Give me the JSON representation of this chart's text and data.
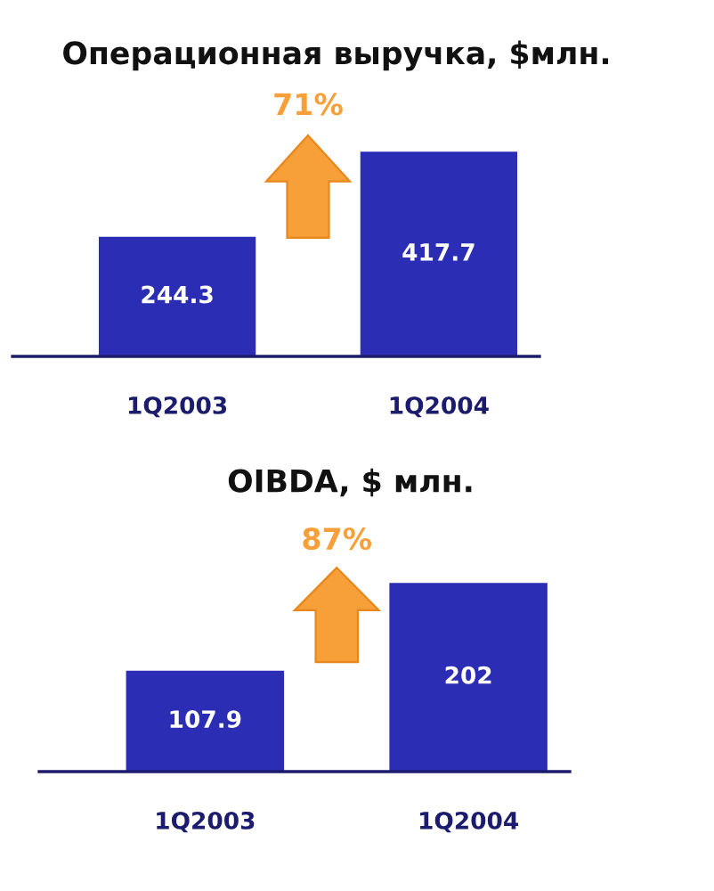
{
  "chart_data": [
    {
      "type": "bar",
      "title": "Операционная выручка, $млн.",
      "categories": [
        "1Q2003",
        "1Q2004"
      ],
      "values": [
        244.3,
        417.7
      ],
      "color": "#2b2db4",
      "data_labels": true,
      "tick_labels": "x",
      "annotations": [
        "71%"
      ]
    },
    {
      "type": "bar",
      "title": "OIBDA, $ млн.",
      "categories": [
        "1Q2003",
        "1Q2004"
      ],
      "values": [
        107.9,
        202
      ],
      "color": "#2b2db4",
      "data_labels": true,
      "tick_labels": "x",
      "annotations": [
        "87%"
      ]
    }
  ]
}
